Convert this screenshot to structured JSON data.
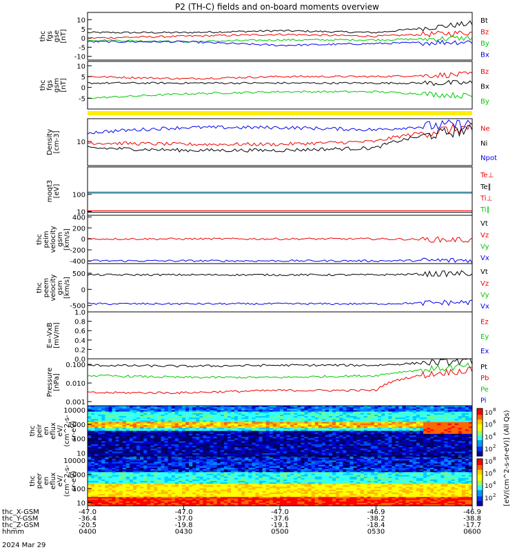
{
  "title": "P2 (TH-C) fields and on-board moments overview",
  "colors": {
    "black": "#000000",
    "red": "#ee0000",
    "green": "#00c800",
    "blue": "#0000ee",
    "yellow": "#ffee00"
  },
  "panels": [
    {
      "id": "fgs_gse",
      "ylabel": [
        "thc",
        "fgs",
        "gse",
        "[nT]"
      ],
      "scale": "linear",
      "ylim": [
        -12,
        14
      ],
      "ticks": [
        10,
        5,
        0,
        -5,
        -10
      ],
      "legend": [
        {
          "text": "Bt",
          "color": "black"
        },
        {
          "text": "Bz",
          "color": "red"
        },
        {
          "text": "By",
          "color": "green"
        },
        {
          "text": "Bx",
          "color": "blue"
        }
      ]
    },
    {
      "id": "fgs_gsm",
      "ylabel": [
        "thc",
        "fgs",
        "gsm",
        "[nT]"
      ],
      "scale": "linear",
      "ylim": [
        -10,
        12
      ],
      "ticks": [
        10,
        5,
        0,
        -5
      ],
      "legend": [
        {
          "text": "Bz",
          "color": "red"
        },
        {
          "text": "Bx",
          "color": "black"
        },
        {
          "text": "By",
          "color": "green"
        }
      ]
    },
    {
      "id": "density",
      "ylabel": [
        "Density",
        "[cm-3]"
      ],
      "scale": "log",
      "ylim": [
        1.5,
        60
      ],
      "ticks": [
        10
      ],
      "legend": [
        {
          "text": "Ne",
          "color": "red"
        },
        {
          "text": "Ni",
          "color": "black"
        },
        {
          "text": "Npot",
          "color": "blue"
        }
      ]
    },
    {
      "id": "temps",
      "ylabel": [
        "moqt3",
        "[eV]"
      ],
      "scale": "log",
      "ylim": [
        6,
        4000
      ],
      "ticks": [
        100,
        10
      ],
      "legend": [
        {
          "text": "Te⊥",
          "color": "red"
        },
        {
          "text": "Te∥",
          "color": "black"
        },
        {
          "text": "Ti⊥",
          "color": "red"
        },
        {
          "text": "Ti∥",
          "color": "green"
        }
      ]
    },
    {
      "id": "peim_vel",
      "ylabel": [
        "thc",
        "peim",
        "velocity",
        "gsm",
        "[km/s]"
      ],
      "scale": "linear",
      "ylim": [
        -450,
        430
      ],
      "ticks": [
        400,
        200,
        0,
        -200,
        -400
      ],
      "legend": [
        {
          "text": "Vt",
          "color": "black"
        },
        {
          "text": "Vz",
          "color": "red"
        },
        {
          "text": "Vy",
          "color": "green"
        },
        {
          "text": "Vx",
          "color": "blue"
        }
      ]
    },
    {
      "id": "peem_vel",
      "ylabel": [
        "thc",
        "peem",
        "velocity",
        "gsm",
        "[km/s]"
      ],
      "scale": "linear",
      "ylim": [
        -700,
        800
      ],
      "ticks": [
        500,
        0,
        -500
      ],
      "legend": [
        {
          "text": "Vt",
          "color": "black"
        },
        {
          "text": "Vz",
          "color": "red"
        },
        {
          "text": "Vy",
          "color": "green"
        },
        {
          "text": "Vx",
          "color": "blue"
        }
      ]
    },
    {
      "id": "efield",
      "ylabel": [
        "E=-VxB",
        "[mV/m]"
      ],
      "scale": "linear",
      "ylim": [
        0,
        1
      ],
      "ticks": [
        1.0,
        0.8,
        0.6,
        0.4,
        0.2,
        0.0
      ],
      "tick_text": [
        "1.0",
        "0.8",
        "0.6",
        "0.4",
        "0.2",
        "0.0"
      ],
      "legend": [
        {
          "text": "Ez",
          "color": "red"
        },
        {
          "text": "Ey",
          "color": "green"
        },
        {
          "text": "Ex",
          "color": "blue"
        }
      ]
    },
    {
      "id": "pressure",
      "ylabel": [
        "Pressure",
        "[nPa]"
      ],
      "scale": "log",
      "ylim": [
        0.0006,
        0.2
      ],
      "ticks": [
        0.1,
        0.01,
        0.001
      ],
      "tick_text": [
        "0.100",
        "0.010",
        "0.001"
      ],
      "legend": [
        {
          "text": "Pt",
          "color": "black"
        },
        {
          "text": "Pb",
          "color": "red"
        },
        {
          "text": "Pe",
          "color": "green"
        },
        {
          "text": "Pi",
          "color": "blue"
        }
      ]
    },
    {
      "id": "peir",
      "ylabel": [
        "thc",
        "peir",
        "en",
        "eflux",
        "eV/",
        "(cm^2-s-",
        "sr-eV)"
      ],
      "scale": "log",
      "ylim": [
        6,
        20000
      ],
      "ticks": [
        10000,
        1000,
        100,
        10
      ],
      "tick_text": [
        "10000",
        "1000",
        "100",
        "10"
      ]
    },
    {
      "id": "peer",
      "ylabel": [
        "thc",
        "peer",
        "en",
        "eflux",
        "eV/",
        "(cm^2-s-",
        "sr-eV)"
      ],
      "scale": "log",
      "ylim": [
        6,
        20000
      ],
      "ticks": [
        10000,
        1000,
        100,
        10
      ],
      "tick_text": [
        "10000",
        "1000",
        "100",
        "10"
      ]
    }
  ],
  "colorbar": {
    "labels": [
      "10",
      "10",
      "10",
      "10",
      "10",
      "10",
      "10",
      "10"
    ],
    "exponents": [
      "8",
      "6",
      "4",
      "2",
      "8",
      "6",
      "4",
      "2"
    ],
    "title": "[eV/(cm^2-s-sr-eV)] (All Qs)"
  },
  "xaxis": {
    "rows": [
      {
        "label": "thc_X-GSM",
        "values": [
          "-47.0",
          "-47.0",
          "-47.0",
          "-46.9",
          "-46.9"
        ]
      },
      {
        "label": "thc_Y-GSM",
        "values": [
          "-36.4",
          "-37.0",
          "-37.6",
          "-38.2",
          "-38.8"
        ]
      },
      {
        "label": "thc_Z-GSM",
        "values": [
          "-20.5",
          "-19.8",
          "-19.1",
          "-18.4",
          "-17.7"
        ]
      },
      {
        "label": "hhmm",
        "values": [
          "0400",
          "0430",
          "0500",
          "0530",
          "0600"
        ]
      }
    ],
    "date": "2024 Mar 29"
  },
  "chart_data": {
    "type": "line",
    "title": "P2 (TH-C) fields and on-board moments overview",
    "x": [
      "0400",
      "0430",
      "0500",
      "0530",
      "0600"
    ],
    "series": [
      {
        "name": "Bt",
        "panel": "fgs_gse",
        "values": [
          3,
          3,
          4,
          3,
          8
        ]
      },
      {
        "name": "Bz",
        "panel": "fgs_gse",
        "values": [
          0,
          1,
          2,
          1,
          3
        ]
      },
      {
        "name": "By",
        "panel": "fgs_gse",
        "values": [
          -1,
          -2,
          -1,
          -1,
          0
        ]
      },
      {
        "name": "Bx",
        "panel": "fgs_gse",
        "values": [
          -2,
          -2,
          -4,
          -3,
          -2
        ]
      },
      {
        "name": "Bz",
        "panel": "fgs_gsm",
        "values": [
          5,
          4,
          5,
          5,
          6
        ]
      },
      {
        "name": "Bx",
        "panel": "fgs_gsm",
        "values": [
          2,
          2,
          2,
          2,
          2
        ]
      },
      {
        "name": "By",
        "panel": "fgs_gsm",
        "values": [
          -5,
          -3,
          -2,
          -2,
          -4
        ]
      },
      {
        "name": "Ne",
        "panel": "density",
        "values": [
          9,
          8,
          8,
          10,
          30
        ]
      },
      {
        "name": "Ni",
        "panel": "density",
        "values": [
          6,
          5,
          5,
          6,
          25
        ]
      },
      {
        "name": "Npot",
        "panel": "density",
        "values": [
          20,
          30,
          30,
          25,
          40
        ]
      },
      {
        "name": "Vx",
        "panel": "peim_vel",
        "values": [
          -400,
          -400,
          -400,
          -400,
          -390
        ]
      },
      {
        "name": "Vz",
        "panel": "peim_vel",
        "values": [
          0,
          0,
          0,
          0,
          -20
        ]
      },
      {
        "name": "Vt",
        "panel": "peem_vel",
        "values": [
          450,
          450,
          450,
          450,
          500
        ]
      },
      {
        "name": "Vx",
        "panel": "peem_vel",
        "values": [
          -450,
          -450,
          -450,
          -450,
          -400
        ]
      },
      {
        "name": "Pt",
        "panel": "pressure",
        "values": [
          0.09,
          0.08,
          0.09,
          0.09,
          0.15
        ]
      },
      {
        "name": "Pe",
        "panel": "pressure",
        "values": [
          0.025,
          0.02,
          0.02,
          0.025,
          0.08
        ]
      },
      {
        "name": "Pb",
        "panel": "pressure",
        "values": [
          0.003,
          0.003,
          0.004,
          0.004,
          0.05
        ]
      }
    ]
  }
}
